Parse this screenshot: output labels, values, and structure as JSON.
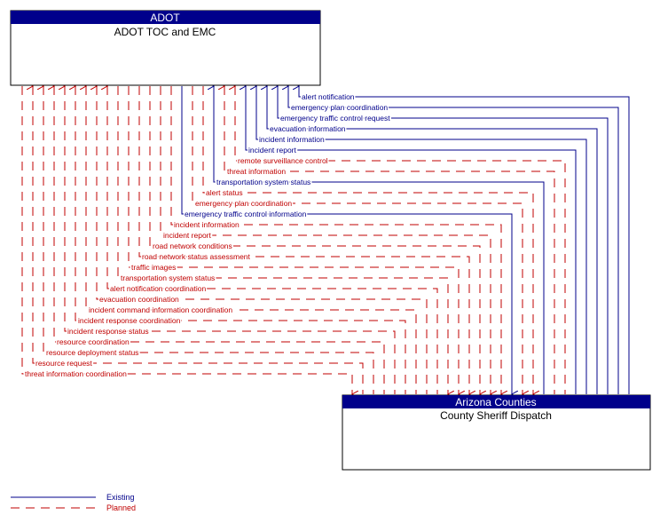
{
  "nodes": [
    {
      "header": "ADOT",
      "title": "ADOT TOC and EMC"
    },
    {
      "header": "Arizona Counties",
      "title": "County Sheriff Dispatch"
    }
  ],
  "flows": [
    {
      "label": "alert notification",
      "status": "existing",
      "to": "top"
    },
    {
      "label": "emergency plan coordination",
      "status": "existing",
      "to": "top"
    },
    {
      "label": "emergency traffic control request",
      "status": "existing",
      "to": "top"
    },
    {
      "label": "evacuation information",
      "status": "existing",
      "to": "top"
    },
    {
      "label": "incident information",
      "status": "existing",
      "to": "top"
    },
    {
      "label": "incident report",
      "status": "existing",
      "to": "top"
    },
    {
      "label": "remote surveillance control",
      "status": "planned",
      "to": "top"
    },
    {
      "label": "threat information",
      "status": "planned",
      "to": "top"
    },
    {
      "label": "transportation system status",
      "status": "existing",
      "to": "top"
    },
    {
      "label": "alert status",
      "status": "planned",
      "to": "bottom"
    },
    {
      "label": "emergency plan coordination",
      "status": "planned",
      "to": "bottom"
    },
    {
      "label": "emergency traffic control information",
      "status": "existing",
      "to": "bottom"
    },
    {
      "label": "incident information",
      "status": "planned",
      "to": "bottom"
    },
    {
      "label": "incident report",
      "status": "planned",
      "to": "bottom"
    },
    {
      "label": "road network conditions",
      "status": "planned",
      "to": "bottom"
    },
    {
      "label": "road network status assessment",
      "status": "planned",
      "to": "bottom"
    },
    {
      "label": "traffic images",
      "status": "planned",
      "to": "bottom"
    },
    {
      "label": "transportation system status",
      "status": "planned",
      "to": "bottom"
    },
    {
      "label": "alert notification coordination",
      "status": "planned",
      "to": "top"
    },
    {
      "label": "evacuation coordination",
      "status": "planned",
      "to": "top"
    },
    {
      "label": "incident command information coordination",
      "status": "planned",
      "to": "top"
    },
    {
      "label": "incident response coordination",
      "status": "planned",
      "to": "top"
    },
    {
      "label": "incident response status",
      "status": "planned",
      "to": "top"
    },
    {
      "label": "resource coordination",
      "status": "planned",
      "to": "top"
    },
    {
      "label": "resource deployment status",
      "status": "planned",
      "to": "top"
    },
    {
      "label": "resource request",
      "status": "planned",
      "to": "top"
    },
    {
      "label": "threat information coordination",
      "status": "planned",
      "to": "bottom"
    }
  ],
  "legend": {
    "existing": "Existing",
    "planned": "Planned"
  }
}
